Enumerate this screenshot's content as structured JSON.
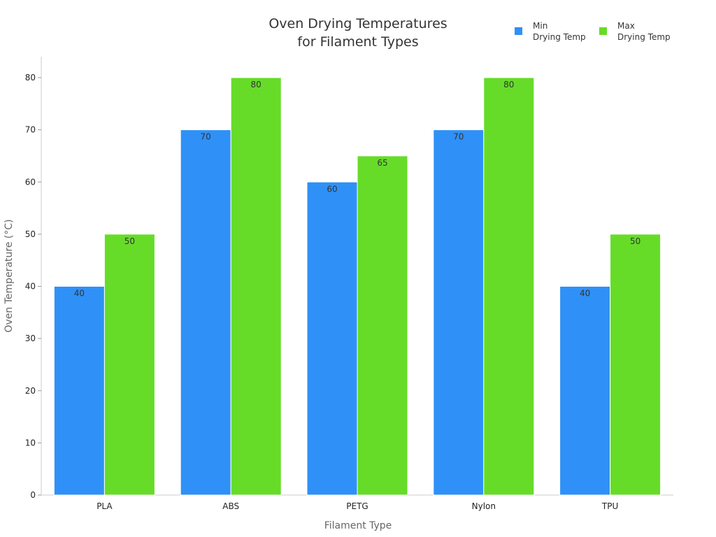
{
  "chart_data": {
    "type": "bar",
    "title": "Oven Drying Temperatures\nfor Filament Types",
    "xlabel": "Filament Type",
    "ylabel": "Oven Temperature (°C)",
    "categories": [
      "PLA",
      "ABS",
      "PETG",
      "Nylon",
      "TPU"
    ],
    "series": [
      {
        "name": "Min\nDrying Temp",
        "color": "#2f91f7",
        "values": [
          40,
          70,
          60,
          70,
          40
        ]
      },
      {
        "name": "Max\nDrying Temp",
        "color": "#66dc28",
        "values": [
          50,
          80,
          65,
          80,
          50
        ]
      }
    ],
    "ylim": [
      0,
      84
    ],
    "yticks": [
      0,
      10,
      20,
      30,
      40,
      50,
      60,
      70,
      80
    ],
    "grid": false,
    "legend": "top-right",
    "data_labels": true
  }
}
